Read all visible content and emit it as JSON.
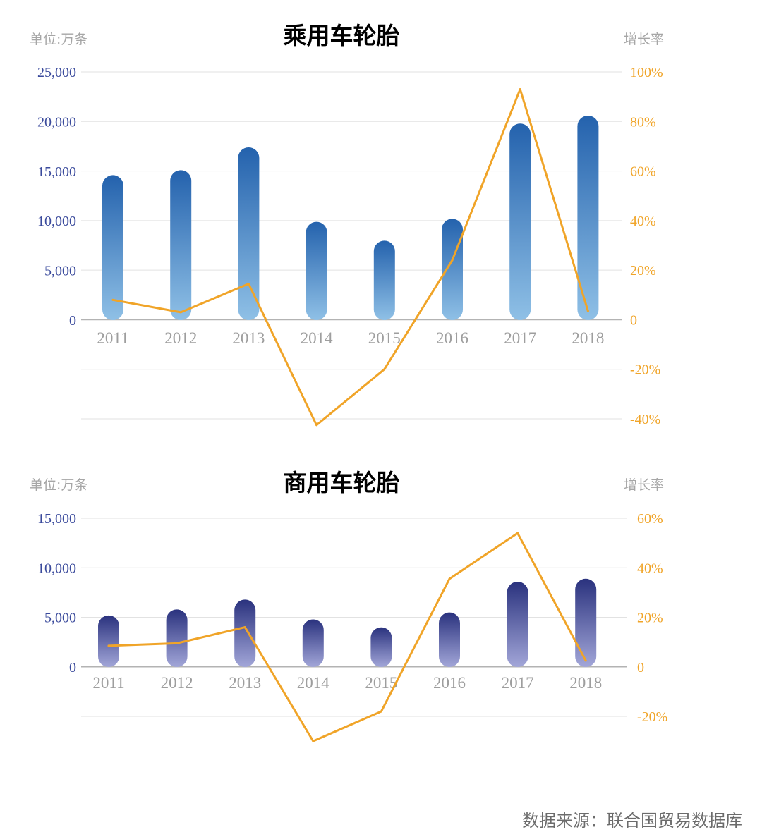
{
  "source": "数据来源：联合国贸易数据库",
  "chart_data": [
    {
      "type": "bar",
      "title": "乘用车轮胎",
      "left_unit": "单位:万条",
      "right_unit": "增长率",
      "categories": [
        "2011",
        "2012",
        "2013",
        "2014",
        "2015",
        "2016",
        "2017",
        "2018"
      ],
      "series": [
        {
          "type": "bar",
          "axis": "left",
          "values": [
            14600,
            15100,
            17400,
            9900,
            8000,
            10200,
            19800,
            20600
          ]
        },
        {
          "type": "line",
          "axis": "right",
          "values": [
            8,
            3,
            14.5,
            -42.5,
            -20,
            24,
            93,
            3.5
          ]
        }
      ],
      "left_axis": {
        "ylim": [
          0,
          25000
        ],
        "ticks": [
          0,
          5000,
          10000,
          15000,
          20000,
          25000
        ],
        "tick_labels": [
          "0",
          "5,000",
          "10,000",
          "15,000",
          "20,000",
          "25,000"
        ]
      },
      "right_axis": {
        "ylim": [
          -40,
          100
        ],
        "ticks": [
          -40,
          -20,
          0,
          20,
          40,
          60,
          80,
          100
        ],
        "tick_labels": [
          "-40%",
          "-20%",
          "0",
          "20%",
          "40%",
          "60%",
          "80%",
          "100%"
        ]
      },
      "colors": {
        "title": "#2566b0",
        "bar_top": "#2462ad",
        "bar_bottom": "#8fc0e6",
        "line": "#f0a428"
      },
      "grid": true
    },
    {
      "type": "bar",
      "title": "商用车轮胎",
      "left_unit": "单位:万条",
      "right_unit": "增长率",
      "categories": [
        "2011",
        "2012",
        "2013",
        "2014",
        "2015",
        "2016",
        "2017",
        "2018"
      ],
      "series": [
        {
          "type": "bar",
          "axis": "left",
          "values": [
            5200,
            5800,
            6800,
            4800,
            4000,
            5500,
            8600,
            8900
          ]
        },
        {
          "type": "line",
          "axis": "right",
          "values": [
            8.5,
            9.5,
            16,
            -30,
            -18,
            35.5,
            54,
            2.5
          ]
        }
      ],
      "left_axis": {
        "ylim": [
          0,
          15000
        ],
        "ticks": [
          0,
          5000,
          10000,
          15000
        ],
        "tick_labels": [
          "0",
          "5,000",
          "10,000",
          "15,000"
        ]
      },
      "right_axis": {
        "ylim": [
          -20,
          60
        ],
        "ticks": [
          -20,
          0,
          20,
          40,
          60
        ],
        "tick_labels": [
          "-20%",
          "0",
          "20%",
          "40%",
          "60%"
        ]
      },
      "colors": {
        "title": "#243384",
        "bar_top": "#2a327e",
        "bar_bottom": "#a2a6d8",
        "line": "#f0a428"
      },
      "grid": true
    }
  ]
}
